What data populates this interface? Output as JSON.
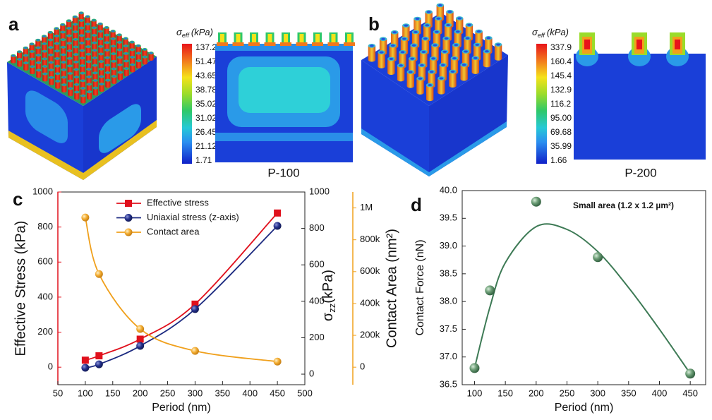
{
  "panels": {
    "a": {
      "label": "a",
      "colorbar": {
        "symbol": "σ",
        "subscript": "eff",
        "unit": "(kPa)",
        "labels": [
          "137.2",
          "51.47",
          "43.65",
          "38.78",
          "35.02",
          "31.02",
          "26.45",
          "21.12",
          "1.71"
        ]
      },
      "caption": "P-100"
    },
    "b": {
      "label": "b",
      "colorbar": {
        "symbol": "σ",
        "subscript": "eff",
        "unit": "(kPa)",
        "labels": [
          "337.9",
          "160.4",
          "145.4",
          "132.9",
          "116.2",
          "95.00",
          "69.68",
          "35.99",
          "1.66"
        ]
      },
      "caption": "P-200"
    }
  },
  "chart_data": [
    {
      "type": "line",
      "panel_label": "c",
      "x": [
        100,
        125,
        200,
        300,
        450
      ],
      "xlabel": "Period (nm)",
      "ylabel": "Effective Stress (kPa)",
      "y2label": {
        "symbol": "σ",
        "subscript": "zz",
        "unit": "(kPa)"
      },
      "y3label": "Contact Area (nm²)",
      "y3color": "#f0a01c",
      "ycolor": "#e0101c",
      "xlim": [
        50,
        500
      ],
      "xticks": [
        50,
        100,
        150,
        200,
        250,
        300,
        350,
        400,
        450,
        500
      ],
      "ylim": [
        -100,
        1000
      ],
      "yticks": [
        0,
        200,
        400,
        600,
        800,
        1000
      ],
      "y2lim": [
        -58,
        1000
      ],
      "y2ticks": [
        0,
        200,
        400,
        600,
        800,
        1000
      ],
      "y3lim": [
        -110000,
        1100000
      ],
      "y3ticks": [
        0,
        {
          "value": 200000,
          "label": "200k"
        },
        {
          "value": 400000,
          "label": "400k"
        },
        {
          "value": 600000,
          "label": "600k"
        },
        {
          "value": 800000,
          "label": "800k"
        },
        {
          "value": 1000000,
          "label": "1M"
        }
      ],
      "series": [
        {
          "name": "Effective stress",
          "color": "#e0101c",
          "marker": "square",
          "values": [
            40,
            65,
            160,
            360,
            880
          ]
        },
        {
          "name": "Uniaxial stress (z-axis)",
          "color": "#1c2a80",
          "marker": "circle",
          "axis": "y2",
          "values": [
            35,
            54,
            155,
            357,
            814
          ]
        },
        {
          "name": "Contact area",
          "color": "#f0a01c",
          "marker": "circle",
          "axis": "y3",
          "values": [
            940000,
            585000,
            240000,
            102000,
            35000
          ]
        }
      ]
    },
    {
      "type": "scatter",
      "panel_label": "d",
      "x": [
        100,
        125,
        200,
        300,
        450
      ],
      "xlabel": "Period (nm)",
      "ylabel": "Contact Force (nN)",
      "annotation": "Small area (1.2 x 1.2 µm²)",
      "xlim": [
        80,
        475
      ],
      "xticks": [
        100,
        150,
        200,
        250,
        300,
        350,
        400,
        450
      ],
      "ylim": [
        36.5,
        40.0
      ],
      "yticks": [
        36.5,
        {
          "value": 37,
          "label": "37.0"
        },
        37.5,
        {
          "value": 38,
          "label": "38.0"
        },
        38.5,
        {
          "value": 39,
          "label": "39.0"
        },
        39.5,
        {
          "value": 40,
          "label": "40.0"
        }
      ],
      "series": [
        {
          "color": "#3f7a55",
          "values": [
            36.8,
            38.2,
            39.8,
            38.8,
            36.7
          ]
        }
      ],
      "fit": {
        "color": "#3d7a55",
        "x": [
          100,
          125,
          150,
          200,
          250,
          300,
          350,
          400,
          450
        ],
        "values": [
          36.8,
          37.9,
          38.7,
          39.35,
          39.3,
          38.9,
          38.25,
          37.5,
          36.7
        ]
      }
    }
  ]
}
